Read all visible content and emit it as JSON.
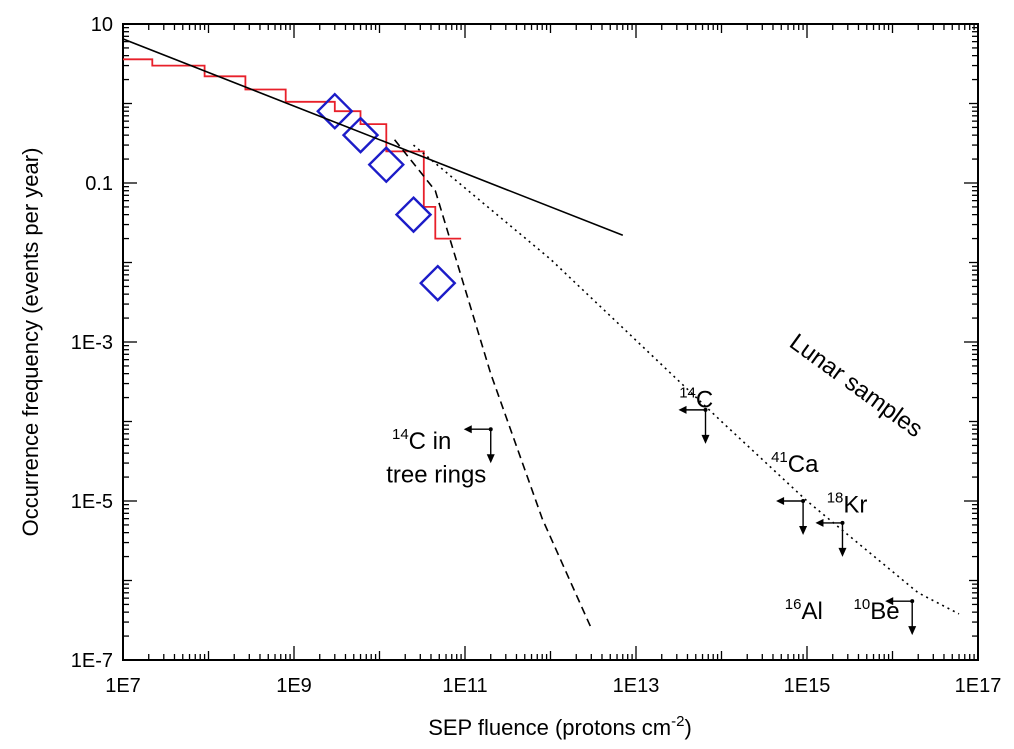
{
  "chart_data": {
    "type": "scatter",
    "x_scale": "log",
    "y_scale": "log",
    "xlim": [
      10000000.0,
      1e+17
    ],
    "ylim": [
      1e-07,
      10
    ],
    "xlabel": "SEP fluence (protons cm",
    "xlabel_sup": "-2",
    "xlabel_end": ")",
    "ylabel": "Occurrence frequency (events per year)",
    "x_ticks": [
      {
        "value": 10000000.0,
        "label": "1E7"
      },
      {
        "value": 1000000000.0,
        "label": "1E9"
      },
      {
        "value": 100000000000.0,
        "label": "1E11"
      },
      {
        "value": 10000000000000.0,
        "label": "1E13"
      },
      {
        "value": 1000000000000000.0,
        "label": "1E15"
      },
      {
        "value": 1e+17,
        "label": "1E17"
      }
    ],
    "y_ticks": [
      {
        "value": 10,
        "label": "10"
      },
      {
        "value": 0.1,
        "label": "0.1"
      },
      {
        "value": 0.001,
        "label": "1E-3"
      },
      {
        "value": 1e-05,
        "label": "1E-5"
      },
      {
        "value": 1e-07,
        "label": "1E-7"
      }
    ],
    "series": [
      {
        "kind": "step",
        "color": "#e8202a",
        "x": [
          10000000.0,
          22000000.0,
          22000000.0,
          90000000.0,
          90000000.0,
          270000000.0,
          270000000.0,
          800000000.0,
          800000000.0,
          3000000000.0,
          3000000000.0,
          6000000000.0,
          6000000000.0,
          12000000000.0,
          12000000000.0,
          33000000000.0,
          33000000000.0,
          45000000000.0,
          45000000000.0,
          90000000000.0
        ],
        "y": [
          3.6,
          3.6,
          3.0,
          3.0,
          2.2,
          2.2,
          1.5,
          1.5,
          1.05,
          1.05,
          0.8,
          0.8,
          0.55,
          0.55,
          0.25,
          0.25,
          0.05,
          0.05,
          0.02,
          0.02
        ]
      },
      {
        "kind": "diamonds",
        "color": "#1c1cc8",
        "x": [
          3000000000.0,
          6000000000.0,
          12000000000.0,
          25000000000.0,
          48000000000.0
        ],
        "y": [
          0.8,
          0.4,
          0.17,
          0.04,
          0.0055
        ]
      },
      {
        "kind": "line",
        "style": "solid",
        "color": "#000000",
        "x": [
          10000000.0,
          7000000000000.0
        ],
        "y": [
          6.5,
          0.022
        ]
      },
      {
        "kind": "line",
        "style": "dashed",
        "color": "#000000",
        "x": [
          15000000000.0,
          45000000000.0,
          200000000000.0,
          800000000000.0,
          3000000000000.0
        ],
        "y": [
          0.35,
          0.08,
          0.0004,
          6e-06,
          2.5e-07
        ]
      },
      {
        "kind": "line",
        "style": "dotted",
        "color": "#000000",
        "x": [
          25000000000.0,
          1000000000000.0,
          100000000000000.0,
          1000000000000000.0,
          2e+16,
          6e+16
        ],
        "y": [
          0.3,
          0.011,
          0.0001,
          1e-05,
          7e-07,
          3.8e-07
        ]
      }
    ],
    "limit_markers": [
      {
        "x": 200000000000.0,
        "y": 8e-05
      },
      {
        "x": 65000000000000.0,
        "y": 0.00014
      },
      {
        "x": 900000000000000.0,
        "y": 1e-05
      },
      {
        "x": 2600000000000000.0,
        "y": 5.3e-06
      },
      {
        "x": 1.7e+16,
        "y": 5.5e-07
      }
    ],
    "annotations": [
      {
        "sup": "14",
        "text": "C in",
        "x": 14000000000.0,
        "y": 4.5e-05
      },
      {
        "sup": "",
        "text": "tree rings",
        "x": 12000000000.0,
        "y": 1.7e-05
      },
      {
        "sup": "14",
        "text": "C",
        "x": 32000000000000.0,
        "y": 0.00015
      },
      {
        "sup": "41",
        "text": "Ca",
        "x": 380000000000000.0,
        "y": 2.3e-05
      },
      {
        "sup": "18",
        "text": "Kr",
        "x": 1700000000000000.0,
        "y": 7.2e-06
      },
      {
        "sup": "16",
        "text": "Al",
        "x": 550000000000000.0,
        "y": 3.3e-07
      },
      {
        "sup": "10",
        "text": "Be",
        "x": 3500000000000000.0,
        "y": 3.3e-07
      }
    ],
    "rotated_label": {
      "text": "Lunar samples",
      "x": 600000000000000.0,
      "y": 0.0009,
      "angle": 36
    }
  }
}
